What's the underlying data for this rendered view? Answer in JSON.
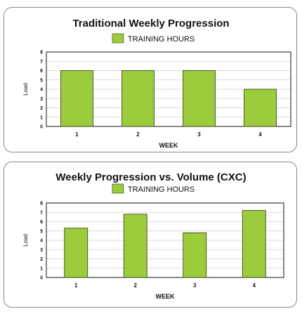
{
  "colors": {
    "bar": "#9ccc3c",
    "bar_stroke": "#2c3a10",
    "grid": "#cfcfcf",
    "axis": "#111111",
    "border": "#8a8a8a"
  },
  "chart_data": [
    {
      "type": "bar",
      "title": "Traditional Weekly Progression",
      "legend": [
        "TRAINING HOURS"
      ],
      "legend_position": "top",
      "categories": [
        "1",
        "2",
        "3",
        "4"
      ],
      "series": [
        {
          "name": "TRAINING HOURS",
          "values": [
            6,
            6,
            6,
            4
          ]
        }
      ],
      "xlabel": "WEEK",
      "ylabel": "Load",
      "ylim": [
        0,
        8
      ],
      "yticks": [
        "0",
        "1",
        "2",
        "3",
        "4",
        "5",
        "6",
        "7",
        "8"
      ],
      "grid": true
    },
    {
      "type": "bar",
      "title": "Weekly Progression vs. Volume (CXC)",
      "legend": [
        "TRAINING HOURS"
      ],
      "legend_position": "top",
      "categories": [
        "1",
        "2",
        "3",
        "4"
      ],
      "series": [
        {
          "name": "TRAINING HOURS",
          "values": [
            5.3,
            6.8,
            4.8,
            7.2
          ]
        }
      ],
      "xlabel": "WEEK",
      "ylabel": "Load",
      "ylim": [
        0,
        8
      ],
      "yticks": [
        "0",
        "1",
        "2",
        "3",
        "4",
        "5",
        "6",
        "7",
        "8"
      ],
      "grid": true
    }
  ]
}
